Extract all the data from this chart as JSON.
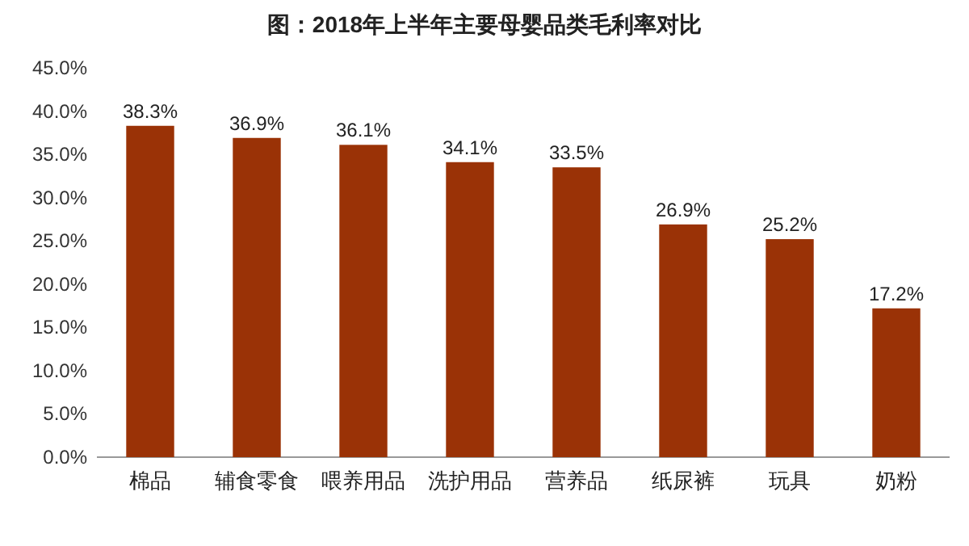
{
  "chart_data": {
    "type": "bar",
    "title": "图：2018年上半年主要母婴品类毛利率对比",
    "categories": [
      "棉品",
      "辅食零食",
      "喂养用品",
      "洗护用品",
      "营养品",
      "纸尿裤",
      "玩具",
      "奶粉"
    ],
    "values": [
      38.3,
      36.9,
      36.1,
      34.1,
      33.5,
      26.9,
      25.2,
      17.2
    ],
    "value_labels": [
      "38.3%",
      "36.9%",
      "36.1%",
      "34.1%",
      "33.5%",
      "26.9%",
      "25.2%",
      "17.2%"
    ],
    "color": "#9a3206",
    "ylim": [
      0,
      45
    ],
    "yticks": [
      {
        "value": 0,
        "label": "0.0%"
      },
      {
        "value": 5,
        "label": "5.0%"
      },
      {
        "value": 10,
        "label": "10.0%"
      },
      {
        "value": 15,
        "label": "15.0%"
      },
      {
        "value": 20,
        "label": "20.0%"
      },
      {
        "value": 25,
        "label": "25.0%"
      },
      {
        "value": 30,
        "label": "30.0%"
      },
      {
        "value": 35,
        "label": "35.0%"
      },
      {
        "value": 40,
        "label": "40.0%"
      },
      {
        "value": 45,
        "label": "45.0%"
      }
    ]
  }
}
